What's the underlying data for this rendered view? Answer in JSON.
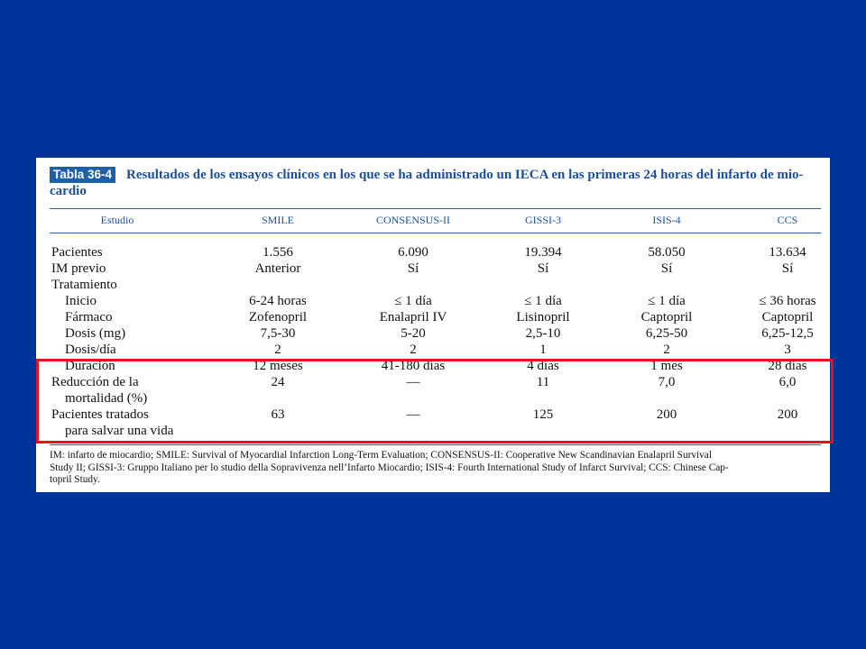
{
  "table_tag": "Tabla 36-4",
  "title": "Resultados de los ensayos clínicos en los que se ha administrado un IECA en las primeras 24 horas del infarto de mio-cardio",
  "title_line1": "Resultados de los ensayos clínicos en los que se ha administrado un IECA en las primeras 24 horas del infarto de mio-",
  "title_line2": "cardio",
  "columns": [
    "Estudio",
    "SMILE",
    "CONSENSUS-II",
    "GISSI-3",
    "ISIS-4",
    "CCS"
  ],
  "rows": [
    {
      "label": "Pacientes",
      "values": [
        "1.556",
        "6.090",
        "19.394",
        "58.050",
        "13.634"
      ]
    },
    {
      "label": "IM previo",
      "values": [
        "Anterior",
        "Sí",
        "Sí",
        "Sí",
        "Sí"
      ]
    },
    {
      "label": "Tratamiento",
      "values": [
        "",
        "",
        "",
        "",
        ""
      ]
    },
    {
      "label": "Inicio",
      "values": [
        "6-24 horas",
        "≤ 1 día",
        "≤ 1 día",
        "≤ 1 día",
        "≤ 36 horas"
      ]
    },
    {
      "label": "Fármaco",
      "values": [
        "Zofenopril",
        "Enalapril IV",
        "Lisinopril",
        "Captopril",
        "Captopril"
      ]
    },
    {
      "label": "Dosis (mg)",
      "values": [
        "7,5-30",
        "5-20",
        "2,5-10",
        "6,25-50",
        "6,25-12,5"
      ]
    },
    {
      "label": "Dosis/día",
      "values": [
        "2",
        "2",
        "1",
        "2",
        "3"
      ]
    },
    {
      "label": "Duración",
      "values": [
        "12 meses",
        "41-180 días",
        "4 días",
        "1 mes",
        "28 días"
      ]
    },
    {
      "label": "Reducción de la",
      "label2": "mortalidad (%)",
      "values": [
        "24",
        "—",
        "11",
        "7,0",
        "6,0"
      ]
    },
    {
      "label": "Pacientes tratados",
      "label2": "para salvar una vida",
      "values": [
        "63",
        "—",
        "125",
        "200",
        "200"
      ]
    }
  ],
  "footnote": "IM: infarto de miocardio; SMILE: Survival of Myocardial Infarction Long-Term Evaluation; CONSENSUS-II: Cooperative New Scandinavian Enalapril Survival Study II; GISSI-3: Gruppo Italiano per lo studio della Sopravivenza nell’Infarto Miocardio; ISIS-4: Fourth International Study of Infarct Survival; CCS: Chinese Cap-topril Study.",
  "footnote_line1": "IM: infarto de miocardio; SMILE: Survival of Myocardial Infarction Long-Term Evaluation; CONSENSUS-II: Cooperative New Scandinavian Enalapril Survival",
  "footnote_line2": "Study II; GISSI-3: Gruppo Italiano per lo studio della Sopravivenza nell’Infarto Miocardio; ISIS-4: Fourth International Study of Infarct Survival; CCS: Chinese Cap-",
  "footnote_line3": "topril Study.",
  "colors": {
    "background": "#003399",
    "highlight": "#e8101a",
    "tag": "#1f5fa8",
    "heading_text": "#1b4f9c"
  }
}
